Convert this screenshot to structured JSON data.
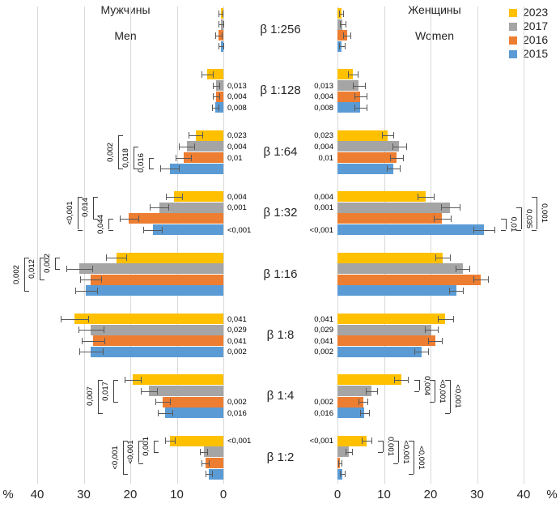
{
  "titles": {
    "men_ru": "Мужчины",
    "men_en": "Men",
    "women_ru": "Женщины",
    "women_en": "Women"
  },
  "legend": [
    {
      "label": "2023",
      "color": "#FFC000"
    },
    {
      "label": "2017",
      "color": "#A5A5A5"
    },
    {
      "label": "2016",
      "color": "#ED7D31"
    },
    {
      "label": "2015",
      "color": "#5B9BD5"
    }
  ],
  "axis": {
    "unit": "%",
    "ticks": [
      40,
      30,
      20,
      10,
      0
    ]
  },
  "colors": {
    "gridline": "#d9d9d9",
    "error_bar": "#595959",
    "text": "#262626"
  },
  "chart_data": {
    "type": "bar",
    "orientation": "horizontal-diverging",
    "series": [
      "2023",
      "2017",
      "2016",
      "2015"
    ],
    "categories": [
      "β 1:256",
      "β 1:128",
      "β 1:64",
      "β 1:32",
      "β 1:16",
      "β 1:8",
      "β 1:4",
      "β 1:2"
    ],
    "xlabel": "%",
    "xlim_each_side": [
      0,
      45
    ],
    "grid": true,
    "legend_position": "top-right",
    "rows": [
      {
        "category": "β 1:256",
        "men": {
          "values": [
            0.6,
            0.5,
            1.0,
            0.5
          ],
          "errors": [
            0.5,
            0.5,
            0.7,
            0.5
          ],
          "bar_labels": [
            "",
            "",
            "",
            ""
          ],
          "brackets": []
        },
        "women": {
          "values": [
            0.8,
            1.1,
            2.0,
            0.9
          ],
          "errors": [
            0.4,
            0.6,
            0.8,
            0.6
          ],
          "bar_labels": [
            "",
            "",
            "",
            ""
          ],
          "brackets": []
        }
      },
      {
        "category": "β 1:128",
        "men": {
          "values": [
            3.5,
            1.5,
            1.5,
            1.7
          ],
          "errors": [
            1.2,
            0.7,
            0.7,
            0.7
          ],
          "bar_labels": [
            "",
            "0,013",
            "0,004",
            "0,008"
          ],
          "brackets": []
        },
        "women": {
          "values": [
            3.3,
            4.6,
            4.9,
            4.9
          ],
          "errors": [
            1.0,
            1.3,
            1.3,
            1.3
          ],
          "bar_labels": [
            "",
            "0,013",
            "0,004",
            "0,008"
          ],
          "brackets": []
        }
      },
      {
        "category": "β 1:64",
        "men": {
          "values": [
            6.0,
            7.9,
            8.6,
            11.5
          ],
          "errors": [
            1.5,
            1.7,
            1.7,
            2.0
          ],
          "bar_labels": [
            "0,023",
            "0,004",
            "0,01",
            ""
          ],
          "brackets": [
            {
              "label": "0,016",
              "from": 2,
              "to": 3
            },
            {
              "label": "0,018",
              "from": 1,
              "to": 3
            },
            {
              "label": "0,002",
              "from": 0,
              "to": 3
            }
          ]
        },
        "women": {
          "values": [
            10.8,
            13.3,
            12.7,
            12.0
          ],
          "errors": [
            1.2,
            1.5,
            1.4,
            1.4
          ],
          "bar_labels": [
            "0,023",
            "0,004",
            "0,01",
            ""
          ],
          "brackets": []
        }
      },
      {
        "category": "β 1:32",
        "men": {
          "values": [
            10.6,
            13.8,
            20.3,
            15.2
          ],
          "errors": [
            1.7,
            2.0,
            2.0,
            2.0
          ],
          "bar_labels": [
            "0,004",
            "0,001",
            "",
            "<0,001"
          ],
          "brackets": [
            {
              "label": "0,044",
              "from": 2,
              "to": 3
            },
            {
              "label": "0,014",
              "from": 0,
              "to": 2
            },
            {
              "label": "<0,001",
              "from": 0,
              "to": 3
            }
          ]
        },
        "women": {
          "values": [
            19.0,
            24.2,
            22.5,
            31.5
          ],
          "errors": [
            1.7,
            2.0,
            1.8,
            2.3
          ],
          "bar_labels": [
            "0,004",
            "0,001",
            "",
            "<0,001"
          ],
          "brackets": [
            {
              "label": "0,01",
              "from": 2,
              "to": 3
            },
            {
              "label": "0,035",
              "from": 1,
              "to": 3
            },
            {
              "label": "0,001",
              "from": 0,
              "to": 3
            }
          ]
        }
      },
      {
        "category": "β 1:16",
        "men": {
          "values": [
            23.0,
            31.0,
            28.5,
            29.5
          ],
          "errors": [
            2.2,
            2.8,
            2.3,
            2.3
          ],
          "bar_labels": [
            "",
            "",
            "",
            ""
          ],
          "brackets": [
            {
              "label": "0,002",
              "from": 0,
              "to": 1
            },
            {
              "label": "0,012",
              "from": 0,
              "to": 2
            },
            {
              "label": "0,002",
              "from": 0,
              "to": 3
            }
          ]
        },
        "women": {
          "values": [
            22.6,
            26.9,
            30.8,
            25.5
          ],
          "errors": [
            1.6,
            1.5,
            1.6,
            1.5
          ],
          "bar_labels": [
            "",
            "",
            "",
            ""
          ],
          "brackets": []
        }
      },
      {
        "category": "β 1:8",
        "men": {
          "values": [
            32.0,
            28.5,
            28.0,
            28.5
          ],
          "errors": [
            3.0,
            2.7,
            2.5,
            2.5
          ],
          "bar_labels": [
            "0,041",
            "0,029",
            "0,041",
            "0,002"
          ],
          "brackets": []
        },
        "women": {
          "values": [
            23.2,
            20.2,
            21.0,
            18.0
          ],
          "errors": [
            1.7,
            1.4,
            1.5,
            1.4
          ],
          "bar_labels": [
            "0,041",
            "0,029",
            "0,041",
            "0,002"
          ],
          "brackets": []
        }
      },
      {
        "category": "β 1:4",
        "men": {
          "values": [
            19.5,
            16.0,
            13.0,
            12.5
          ],
          "errors": [
            1.8,
            1.8,
            1.6,
            1.6
          ],
          "bar_labels": [
            "",
            "",
            "0,002",
            "0,016"
          ],
          "brackets": [
            {
              "label": "0,017",
              "from": 0,
              "to": 2
            },
            {
              "label": "0,007",
              "from": 0,
              "to": 3
            }
          ]
        },
        "women": {
          "values": [
            13.7,
            7.3,
            5.5,
            5.8
          ],
          "errors": [
            1.5,
            1.2,
            1.0,
            1.0
          ],
          "bar_labels": [
            "",
            "",
            "0,002",
            "0,016"
          ],
          "brackets": [
            {
              "label": "0,004",
              "from": 0,
              "to": 1
            },
            {
              "label": "<0,001",
              "from": 0,
              "to": 2
            },
            {
              "label": "<0,001",
              "from": 0,
              "to": 3
            }
          ]
        }
      },
      {
        "category": "β 1:2",
        "men": {
          "values": [
            11.5,
            4.2,
            3.9,
            3.1
          ],
          "errors": [
            1.0,
            0.8,
            0.8,
            0.7
          ],
          "bar_labels": [
            "<0,001",
            "",
            "",
            ""
          ],
          "brackets": [
            {
              "label": "0,001",
              "from": 0,
              "to": 1
            },
            {
              "label": "<0,001",
              "from": 0,
              "to": 2
            },
            {
              "label": "<0,001",
              "from": 0,
              "to": 3
            }
          ]
        },
        "women": {
          "values": [
            6.3,
            2.5,
            0.5,
            1.0
          ],
          "errors": [
            1.0,
            0.7,
            0.3,
            0.5
          ],
          "bar_labels": [
            "<0,001",
            "",
            "",
            ""
          ],
          "brackets": [
            {
              "label": "0,001",
              "from": 0,
              "to": 1
            },
            {
              "label": "<0,001",
              "from": 0,
              "to": 2
            },
            {
              "label": "<0,001",
              "from": 0,
              "to": 3
            }
          ]
        }
      }
    ]
  }
}
